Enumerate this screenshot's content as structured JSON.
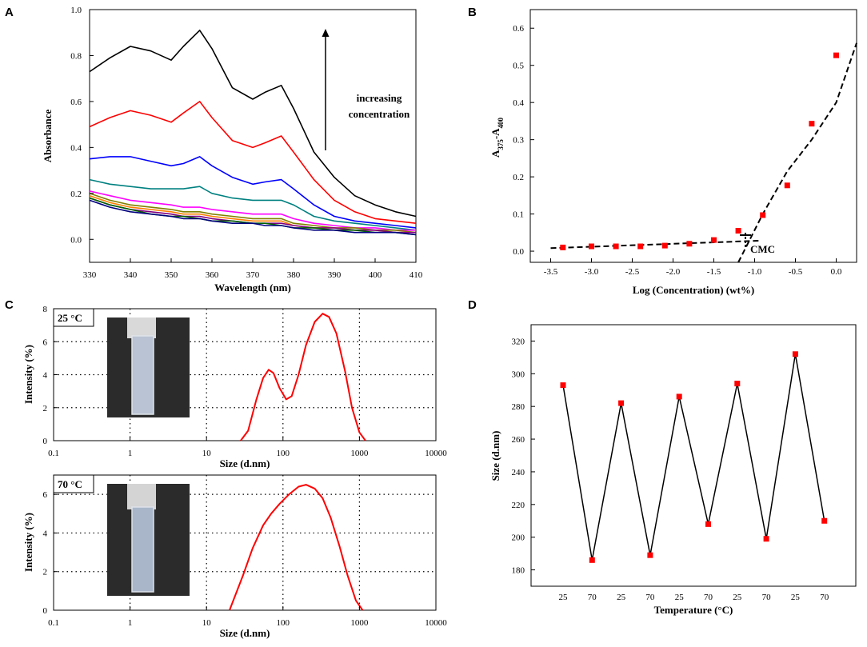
{
  "figure": {
    "panels": [
      "A",
      "B",
      "C",
      "D"
    ]
  },
  "chart_data": [
    {
      "panel": "A",
      "type": "line",
      "xlabel": "Wavelength (nm)",
      "ylabel": "Absorbance",
      "xlim": [
        330,
        410
      ],
      "ylim": [
        -0.1,
        1.0
      ],
      "xticks": [
        "330",
        "340",
        "350",
        "360",
        "370",
        "380",
        "390",
        "400",
        "410"
      ],
      "yticks": [
        "0.0",
        "0.2",
        "0.4",
        "0.6",
        "0.8",
        "1.0"
      ],
      "annotation": [
        "increasing",
        "concentration"
      ],
      "x": [
        330,
        335,
        340,
        345,
        350,
        353,
        357,
        360,
        365,
        370,
        373,
        377,
        380,
        385,
        390,
        395,
        400,
        405,
        410
      ],
      "series": [
        {
          "name": "s1",
          "color": "#000000",
          "values": [
            0.73,
            0.79,
            0.84,
            0.82,
            0.78,
            0.84,
            0.91,
            0.83,
            0.66,
            0.61,
            0.64,
            0.67,
            0.57,
            0.38,
            0.27,
            0.19,
            0.15,
            0.12,
            0.1
          ]
        },
        {
          "name": "s2",
          "color": "#ff0000",
          "values": [
            0.49,
            0.53,
            0.56,
            0.54,
            0.51,
            0.55,
            0.6,
            0.53,
            0.43,
            0.4,
            0.42,
            0.45,
            0.38,
            0.26,
            0.17,
            0.12,
            0.09,
            0.08,
            0.07
          ]
        },
        {
          "name": "s3",
          "color": "#0000ff",
          "values": [
            0.35,
            0.36,
            0.36,
            0.34,
            0.32,
            0.33,
            0.36,
            0.32,
            0.27,
            0.24,
            0.25,
            0.26,
            0.22,
            0.15,
            0.1,
            0.08,
            0.07,
            0.06,
            0.05
          ]
        },
        {
          "name": "s4",
          "color": "#008080",
          "values": [
            0.26,
            0.24,
            0.23,
            0.22,
            0.22,
            0.22,
            0.23,
            0.2,
            0.18,
            0.17,
            0.17,
            0.17,
            0.15,
            0.1,
            0.08,
            0.07,
            0.06,
            0.05,
            0.04
          ]
        },
        {
          "name": "s5",
          "color": "#ff00ff",
          "values": [
            0.21,
            0.19,
            0.17,
            0.16,
            0.15,
            0.14,
            0.14,
            0.13,
            0.12,
            0.11,
            0.11,
            0.11,
            0.09,
            0.07,
            0.06,
            0.05,
            0.05,
            0.04,
            0.04
          ]
        },
        {
          "name": "s6",
          "color": "#808000",
          "values": [
            0.2,
            0.17,
            0.15,
            0.14,
            0.13,
            0.12,
            0.12,
            0.11,
            0.1,
            0.09,
            0.09,
            0.09,
            0.07,
            0.06,
            0.05,
            0.05,
            0.04,
            0.04,
            0.03
          ]
        },
        {
          "name": "s7",
          "color": "#ff8000",
          "values": [
            0.19,
            0.16,
            0.14,
            0.13,
            0.12,
            0.11,
            0.11,
            0.1,
            0.09,
            0.08,
            0.08,
            0.08,
            0.06,
            0.05,
            0.05,
            0.04,
            0.04,
            0.03,
            0.03
          ]
        },
        {
          "name": "s8",
          "color": "#800080",
          "values": [
            0.18,
            0.15,
            0.13,
            0.12,
            0.11,
            0.1,
            0.1,
            0.09,
            0.08,
            0.07,
            0.07,
            0.07,
            0.06,
            0.05,
            0.05,
            0.04,
            0.04,
            0.03,
            0.03
          ]
        },
        {
          "name": "s9",
          "color": "#006400",
          "values": [
            0.18,
            0.15,
            0.13,
            0.11,
            0.1,
            0.1,
            0.09,
            0.08,
            0.08,
            0.07,
            0.07,
            0.06,
            0.05,
            0.05,
            0.04,
            0.04,
            0.03,
            0.03,
            0.02
          ]
        },
        {
          "name": "s10",
          "color": "#000080",
          "values": [
            0.17,
            0.14,
            0.12,
            0.11,
            0.1,
            0.09,
            0.09,
            0.08,
            0.07,
            0.07,
            0.06,
            0.06,
            0.05,
            0.04,
            0.04,
            0.03,
            0.03,
            0.03,
            0.02
          ]
        }
      ]
    },
    {
      "panel": "B",
      "type": "scatter",
      "xlabel": "Log (Concentration) (wt%)",
      "ylabel": "A375-A400",
      "ylabel_main": "A",
      "ylabel_sub1": "375",
      "ylabel_mid": "-A",
      "ylabel_sub2": "400",
      "xlim": [
        -3.75,
        0.25
      ],
      "ylim": [
        -0.03,
        0.65
      ],
      "xticks": [
        "-3.5",
        "-3.0",
        "-2.5",
        "-2.0",
        "-1.5",
        "-1.0",
        "-0.5",
        "0.0"
      ],
      "yticks": [
        "0.0",
        "0.1",
        "0.2",
        "0.3",
        "0.4",
        "0.5",
        "0.6"
      ],
      "annotation": "CMC",
      "marker_color": "#ff0000",
      "x": [
        -3.35,
        -3.0,
        -2.7,
        -2.4,
        -2.1,
        -1.8,
        -1.5,
        -1.2,
        -0.9,
        -0.6,
        -0.3,
        0.0
      ],
      "y": [
        0.01,
        0.013,
        0.013,
        0.013,
        0.015,
        0.02,
        0.03,
        0.055,
        0.097,
        0.177,
        0.343,
        0.527
      ],
      "fit_low": {
        "x": [
          -3.5,
          -0.95
        ],
        "y": [
          0.008,
          0.028
        ]
      },
      "fit_high": {
        "x": [
          -1.2,
          -0.9,
          -0.6,
          -0.3,
          0.0,
          0.25
        ],
        "y": [
          -0.03,
          0.1,
          0.215,
          0.3,
          0.4,
          0.56
        ]
      }
    },
    {
      "panel": "C",
      "type": "line",
      "xlabel": "Size (d.nm)",
      "ylabel": "Intensity (%)",
      "line_color": "#ff0000",
      "xticks": [
        "0.1",
        "1",
        "10",
        "100",
        "1000",
        "10000"
      ],
      "subplots": [
        {
          "label": "25 °C",
          "ylim": [
            0,
            8
          ],
          "yticks": [
            "0",
            "2",
            "4",
            "6",
            "8"
          ],
          "x": [
            28,
            35,
            45,
            55,
            65,
            75,
            90,
            110,
            130,
            160,
            200,
            260,
            330,
            400,
            500,
            650,
            800,
            1000,
            1200
          ],
          "y": [
            0,
            0.6,
            2.5,
            3.8,
            4.3,
            4.1,
            3.2,
            2.5,
            2.7,
            4.0,
            5.8,
            7.2,
            7.7,
            7.5,
            6.5,
            4.2,
            2.0,
            0.5,
            0
          ]
        },
        {
          "label": "70 °C",
          "ylim": [
            0,
            7
          ],
          "yticks": [
            "0",
            "2",
            "4",
            "6"
          ],
          "x": [
            20,
            30,
            40,
            55,
            70,
            90,
            120,
            160,
            200,
            260,
            330,
            420,
            550,
            700,
            900,
            1100
          ],
          "y": [
            0,
            1.8,
            3.2,
            4.4,
            5.0,
            5.5,
            6.0,
            6.4,
            6.5,
            6.3,
            5.8,
            4.8,
            3.3,
            1.8,
            0.5,
            0
          ]
        }
      ]
    },
    {
      "panel": "D",
      "type": "line",
      "xlabel": "Temperature (°C)",
      "ylabel": "Size (d.nm)",
      "ylim": [
        170,
        330
      ],
      "yticks": [
        "180",
        "200",
        "220",
        "240",
        "260",
        "280",
        "300",
        "320"
      ],
      "categories": [
        "25",
        "70",
        "25",
        "70",
        "25",
        "70",
        "25",
        "70",
        "25",
        "70"
      ],
      "values": [
        293,
        186,
        282,
        189,
        286,
        208,
        294,
        199,
        312,
        210
      ],
      "marker_color": "#ff0000",
      "line_color": "#000000"
    }
  ]
}
